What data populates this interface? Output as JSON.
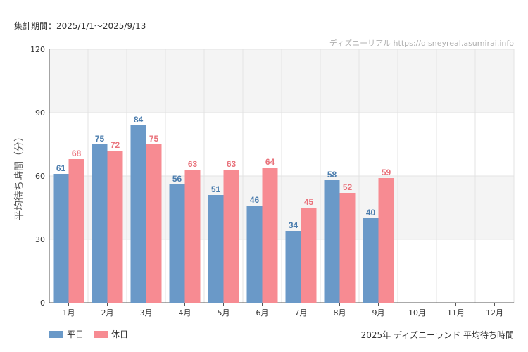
{
  "header": {
    "period": "集計期間：2025/1/1〜2025/9/13",
    "watermark": "ディズニーリアル https://disneyreal.asumirai.info"
  },
  "footer": {
    "title": "2025年 ディズニーランド 平均待ち時間"
  },
  "colors": {
    "weekday": "#6a99c8",
    "holiday": "#f78b92",
    "weekday_label": "#4a7cad",
    "holiday_label": "#e9727b",
    "band": "#f4f4f4",
    "grid": "#e3e3e3",
    "axis": "#555555"
  },
  "chart_data": {
    "type": "bar",
    "categories": [
      "1月",
      "2月",
      "3月",
      "4月",
      "5月",
      "6月",
      "7月",
      "8月",
      "9月",
      "10月",
      "11月",
      "12月"
    ],
    "series": [
      {
        "name": "平日",
        "values": [
          61,
          75,
          84,
          56,
          51,
          46,
          34,
          58,
          40,
          null,
          null,
          null
        ]
      },
      {
        "name": "休日",
        "values": [
          68,
          72,
          75,
          63,
          63,
          64,
          45,
          52,
          59,
          null,
          null,
          null
        ]
      }
    ],
    "ylabel": "平均待ち時間（分）",
    "ylim": [
      0,
      120
    ],
    "yticks": [
      0,
      30,
      60,
      90,
      120
    ],
    "grid": true,
    "legend_position": "bottom-left"
  }
}
